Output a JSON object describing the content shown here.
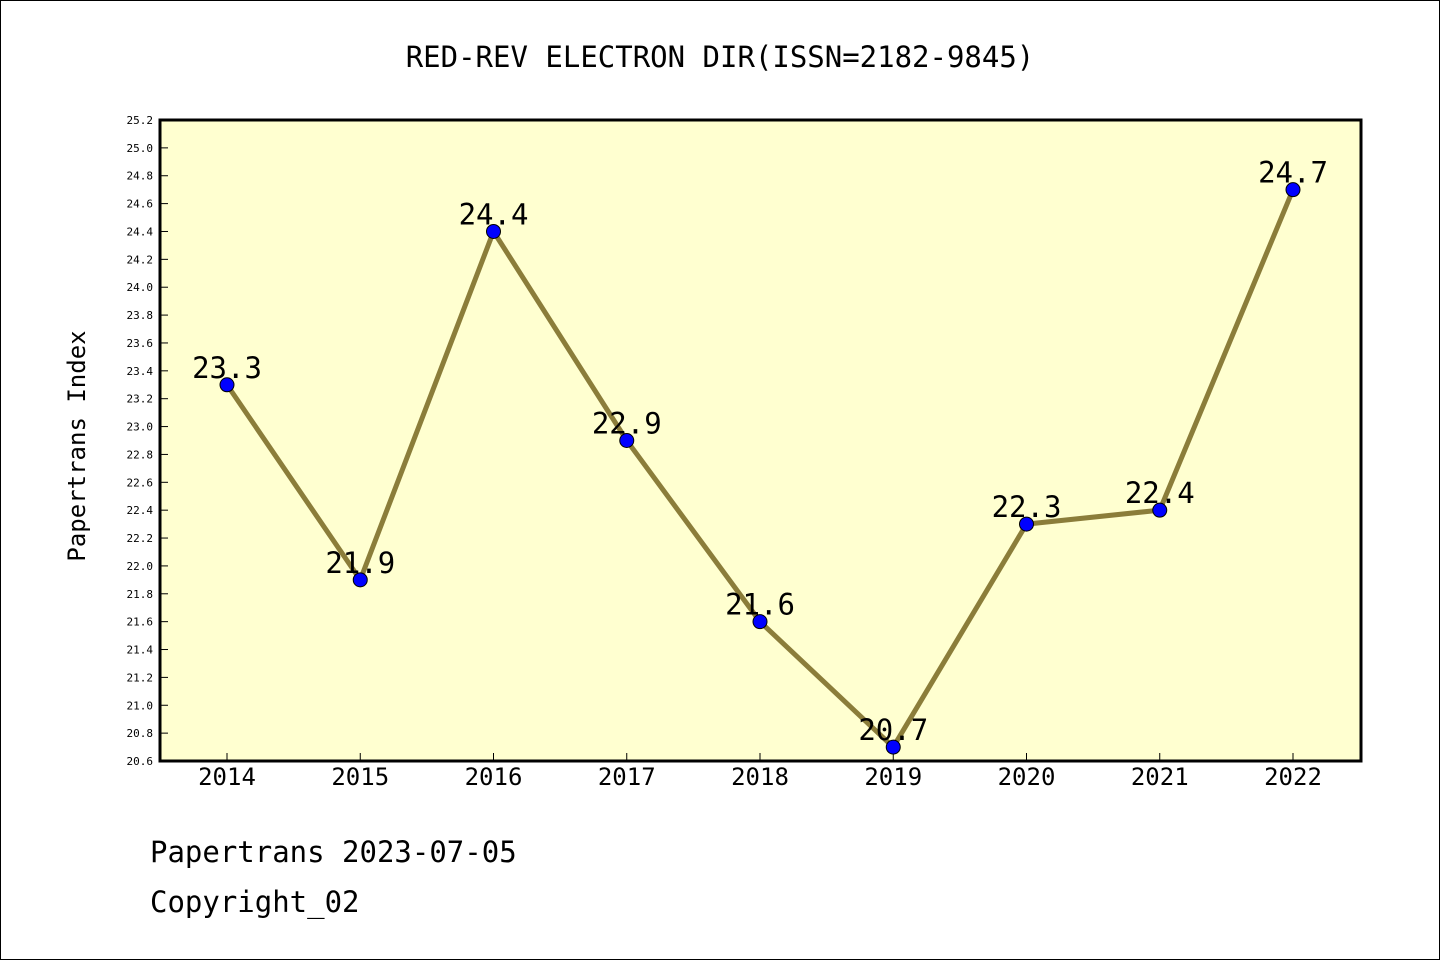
{
  "chart_data": {
    "type": "line",
    "title": "RED-REV ELECTRON DIR(ISSN=2182-9845)",
    "xlabel": "",
    "ylabel": "Papertrans Index",
    "categories": [
      "2014",
      "2015",
      "2016",
      "2017",
      "2018",
      "2019",
      "2020",
      "2021",
      "2022"
    ],
    "series": [
      {
        "values": [
          23.3,
          21.9,
          24.4,
          22.9,
          21.6,
          20.7,
          22.3,
          22.4,
          24.7
        ]
      }
    ],
    "data_labels": [
      "23.3",
      "21.9",
      "24.4",
      "22.9",
      "21.6",
      "20.7",
      "22.3",
      "22.4",
      "24.7"
    ],
    "ylim": [
      20.6,
      25.2
    ],
    "yticks": [
      "20.6",
      "20.8",
      "21.0",
      "21.2",
      "21.4",
      "21.6",
      "21.8",
      "22.0",
      "22.2",
      "22.4",
      "22.6",
      "22.8",
      "23.0",
      "23.2",
      "23.4",
      "23.6",
      "23.8",
      "24.0",
      "24.2",
      "24.4",
      "24.6",
      "24.8",
      "25.0",
      "25.2"
    ],
    "grid": false,
    "colors": {
      "plot_background": "#ffffd0",
      "line": "#8b7d3a",
      "marker": "#0000ff"
    }
  },
  "footer": {
    "line1": "Papertrans 2023-07-05",
    "line2": "Copyright_02"
  }
}
